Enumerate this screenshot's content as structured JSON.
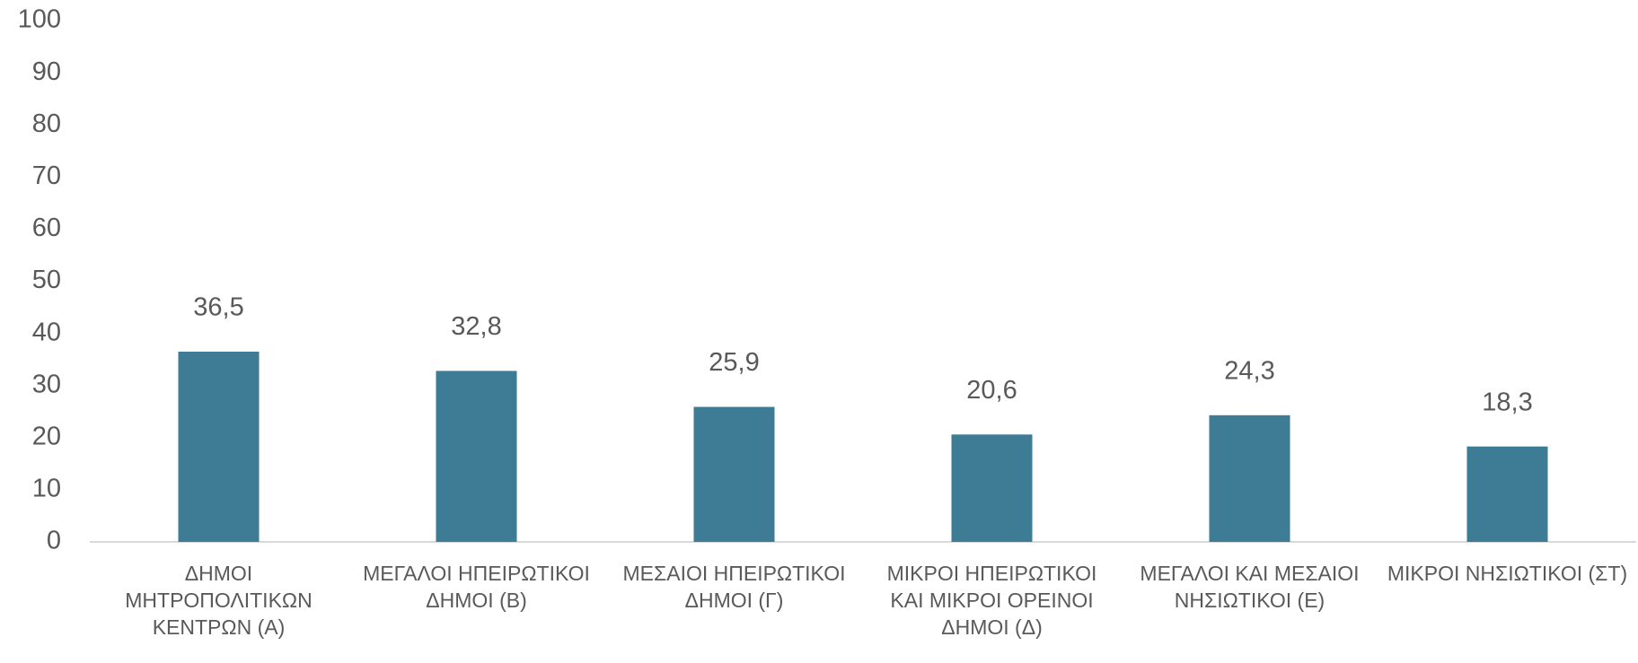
{
  "chart_data": {
    "type": "bar",
    "categories": [
      "ΔΗΜΟΙ ΜΗΤΡΟΠΟΛΙΤΙΚΩΝ ΚΕΝΤΡΩΝ (Α)",
      "ΜΕΓΑΛΟΙ ΗΠΕΙΡΩΤΙΚΟΙ ΔΗΜΟΙ (Β)",
      "ΜΕΣΑΙΟΙ ΗΠΕΙΡΩΤΙΚΟΙ ΔΗΜΟΙ (Γ)",
      "ΜΙΚΡΟΙ ΗΠΕΙΡΩΤΙΚΟΙ ΚΑΙ ΜΙΚΡΟΙ ΟΡΕΙΝΟΙ ΔΗΜΟΙ (Δ)",
      "ΜΕΓΑΛΟΙ ΚΑΙ ΜΕΣΑΙΟΙ ΝΗΣΙΩΤΙΚΟΙ (Ε)",
      "ΜΙΚΡΟΙ ΝΗΣΙΩΤΙΚΟΙ (ΣΤ)"
    ],
    "values": [
      36.5,
      32.8,
      25.9,
      20.6,
      24.3,
      18.3
    ],
    "value_labels": [
      "36,5",
      "32,8",
      "25,9",
      "20,6",
      "24,3",
      "18,3"
    ],
    "color": "#3e7b94",
    "ylim": [
      0,
      100
    ],
    "yticks": [
      0,
      10,
      20,
      30,
      40,
      50,
      60,
      70,
      80,
      90,
      100
    ],
    "grid": false
  }
}
